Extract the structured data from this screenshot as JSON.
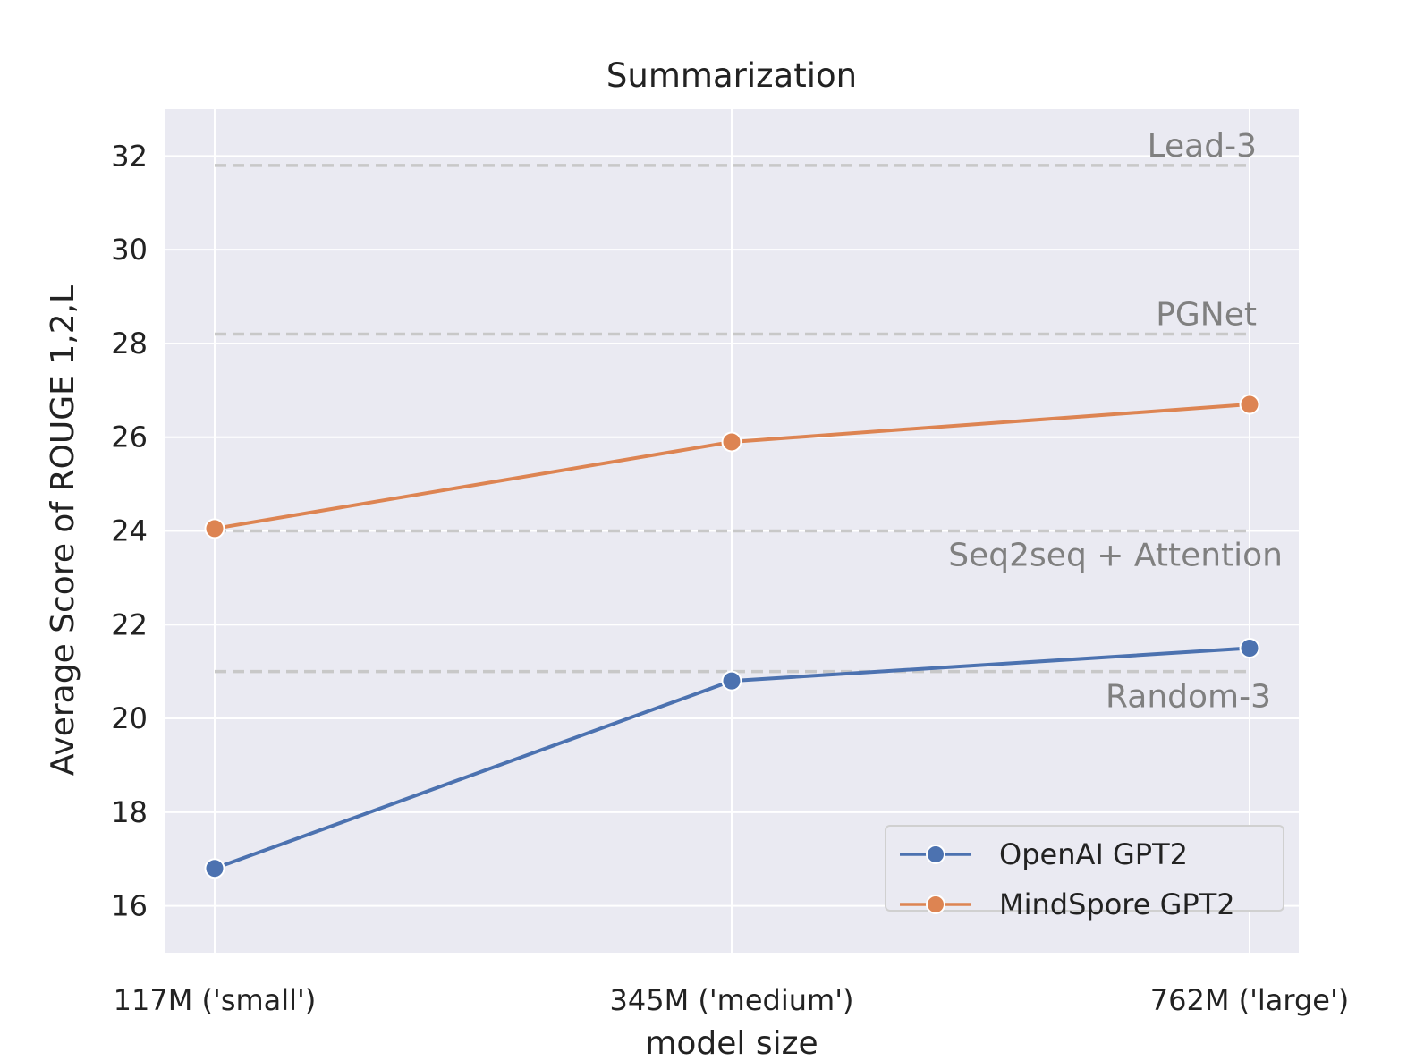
{
  "chart_data": {
    "type": "line",
    "title": "Summarization",
    "xlabel": "model size",
    "ylabel": "Average Score of ROUGE 1,2,L",
    "categories": [
      "117M ('small')",
      "345M ('medium')",
      "762M ('large')"
    ],
    "ylim": [
      15,
      33
    ],
    "yticks": [
      16,
      18,
      20,
      22,
      24,
      26,
      28,
      30,
      32
    ],
    "grid": true,
    "series": [
      {
        "name": "OpenAI GPT2",
        "color": "#4c72b0",
        "values": [
          16.8,
          20.8,
          21.5
        ]
      },
      {
        "name": "MindSpore GPT2",
        "color": "#dd8452",
        "values": [
          24.05,
          25.9,
          26.7
        ]
      }
    ],
    "reference_lines": [
      {
        "label": "Lead-3",
        "value": 31.8,
        "label_position": "above"
      },
      {
        "label": "PGNet",
        "value": 28.2,
        "label_position": "above"
      },
      {
        "label": "Seq2seq + Attention",
        "value": 24.0,
        "label_position": "below"
      },
      {
        "label": "Random-3",
        "value": 21.0,
        "label_position": "below"
      }
    ],
    "legend": "bottom-right",
    "colors": {
      "plot_background": "#eaeaf2",
      "gridline": "#ffffff",
      "reference_line": "#c8c8c8",
      "reference_text": "#808080"
    }
  }
}
